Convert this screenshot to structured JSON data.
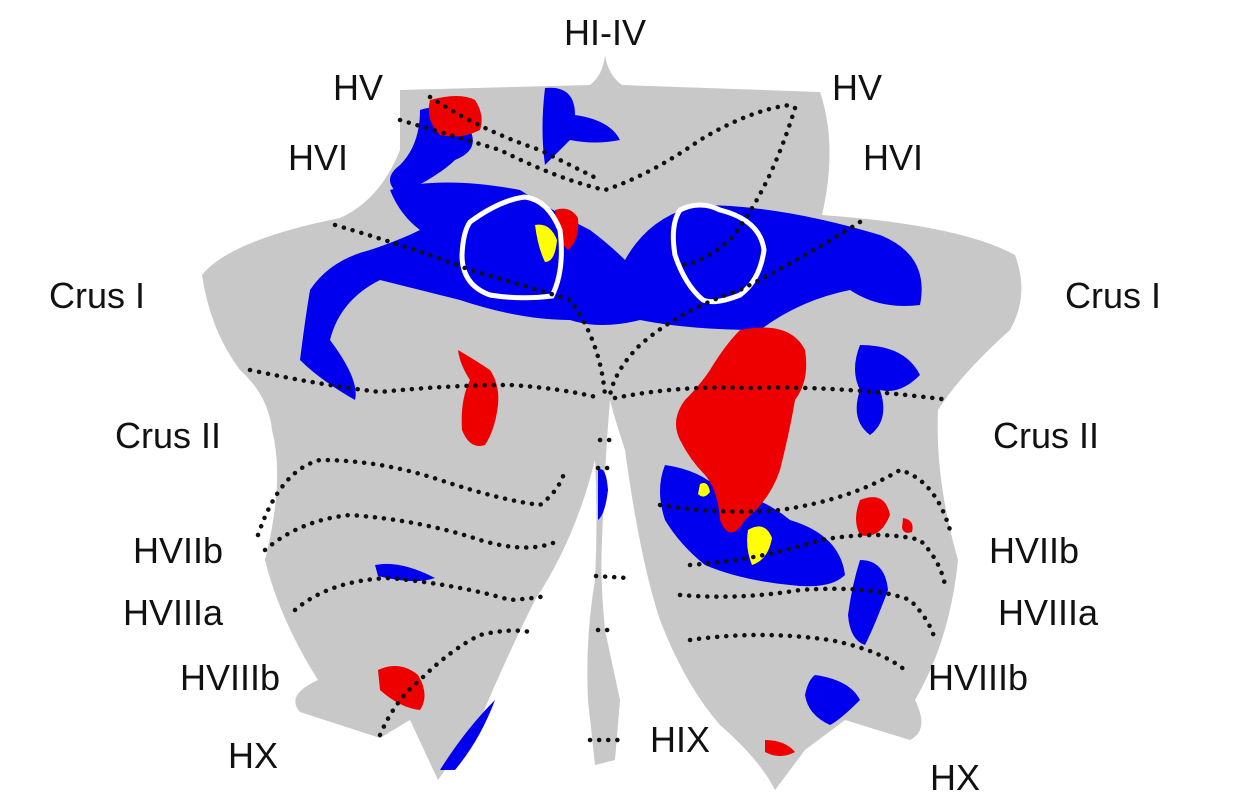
{
  "colors": {
    "background": "#ffffff",
    "flatmap": "#c8c8c8",
    "blue_activation": "#0000ee",
    "red_activation": "#ee0000",
    "yellow_overlap": "#ffff00",
    "outline": "#ffffff",
    "boundaries": "#111111"
  },
  "labels": {
    "hi_iv": "HI-IV",
    "hv_left": "HV",
    "hv_right": "HV",
    "hvi_left": "HVI",
    "hvi_right": "HVI",
    "crus1_left": "Crus I",
    "crus1_right": "Crus I",
    "crus2_left": "Crus II",
    "crus2_right": "Crus II",
    "hviib_left": "HVIIb",
    "hviib_right": "HVIIb",
    "hviiia_left": "HVIIIa",
    "hviiia_right": "HVIIIa",
    "hviiib_left": "HVIIIb",
    "hviiib_right": "HVIIIb",
    "hix": "HIX",
    "hx_left": "HX",
    "hx_right": "HX"
  }
}
